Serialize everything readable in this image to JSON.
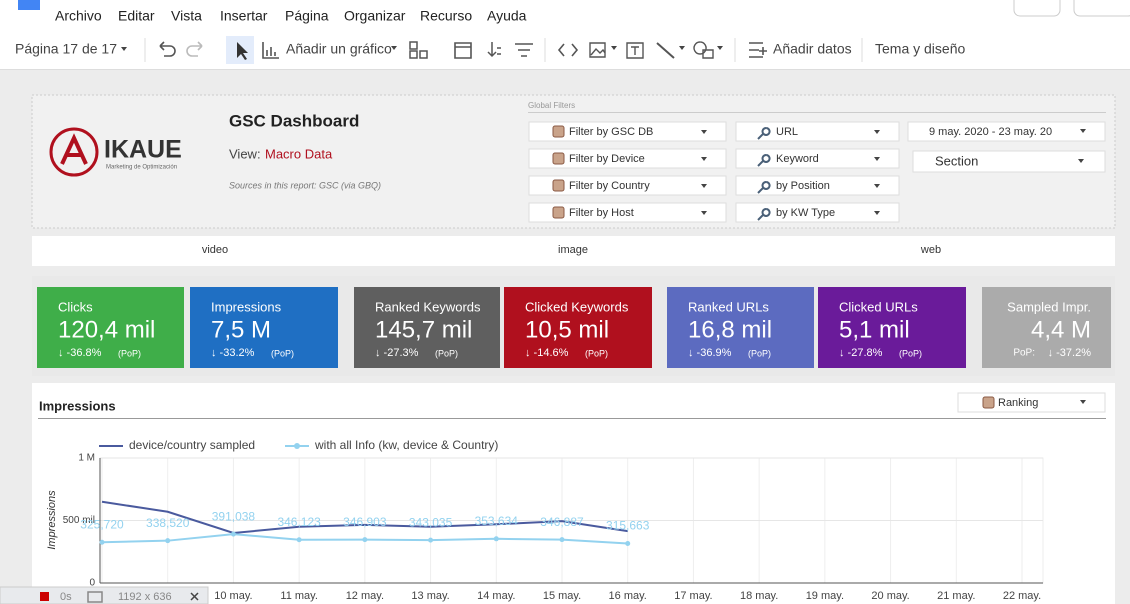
{
  "menu": [
    "Archivo",
    "Editar",
    "Vista",
    "Insertar",
    "Página",
    "Organizar",
    "Recurso",
    "Ayuda"
  ],
  "toolbar": {
    "page": "Página 17 de 17",
    "add_chart": "Añadir un gráfico",
    "add_data": "Añadir datos",
    "theme": "Tema y diseño"
  },
  "header": {
    "logo": "IKAUE",
    "logo_tagline": "Marketing de Optimización",
    "title": "GSC Dashboard",
    "view_label": "View:",
    "view": "Macro Data",
    "sources": "Sources in this report: GSC (via GBQ)"
  },
  "filters": {
    "label": "Global Filters",
    "columns": [
      [
        "Filter by GSC DB",
        "Filter by Device",
        "Filter by Country",
        "Filter by Host"
      ],
      [
        "URL",
        "Keyword",
        "by Position",
        "by KW Type"
      ]
    ],
    "date": "9 may. 2020 - 23 may. 20",
    "section": "Section"
  },
  "tabs": [
    "video",
    "image",
    "web"
  ],
  "kpis": [
    {
      "label": "Clicks",
      "value": "120,4 mil",
      "change": "↓ -36.8%",
      "pop": "(PoP)",
      "color": "#3fae49"
    },
    {
      "label": "Impressions",
      "value": "7,5 M",
      "change": "↓ -33.2%",
      "pop": "(PoP)",
      "color": "#1f6fc3"
    },
    {
      "label": "Ranked Keywords",
      "value": "145,7 mil",
      "change": "↓ -27.3%",
      "pop": "(PoP)",
      "color": "#5f5f5f"
    },
    {
      "label": "Clicked Keywords",
      "value": "10,5 mil",
      "change": "↓ -14.6%",
      "pop": "(PoP)",
      "color": "#b0101e"
    },
    {
      "label": "Ranked URLs",
      "value": "16,8 mil",
      "change": "↓ -36.9%",
      "pop": "(PoP)",
      "color": "#5c6bc0"
    },
    {
      "label": "Clicked URLs",
      "value": "5,1 mil",
      "change": "↓ -27.8%",
      "pop": "(PoP)",
      "color": "#6a1b9a"
    },
    {
      "label": "Sampled Impr.",
      "value": "4,4 M",
      "change": "↓ -37.2%",
      "pop": "PoP:",
      "color": "#ababab",
      "pop_position": "before"
    }
  ],
  "chart_data": {
    "type": "line",
    "title": "Impressions",
    "dropdown": "Ranking",
    "y_label": "Impressions",
    "categories": [
      null,
      null,
      "10 may.",
      "11 may.",
      "12 may.",
      "13 may.",
      "14 may.",
      "15 may.",
      "16 may.",
      "17 may.",
      "18 may.",
      "19 may.",
      "20 may.",
      "21 may.",
      "22 may."
    ],
    "series": [
      {
        "name": "device/country sampled",
        "color": "#4a5a9e",
        "values": [
          650000,
          570000,
          400000,
          450000,
          465000,
          450000,
          470000,
          495000,
          415000,
          null,
          null,
          null,
          null,
          null,
          null
        ]
      },
      {
        "name": "with all Info (kw, device & Country)",
        "color": "#93d2ef",
        "values": [
          325720,
          338520,
          391038,
          346123,
          346903,
          343035,
          353634,
          346887,
          315663,
          null,
          null,
          null,
          null,
          null,
          null
        ],
        "value_labels": [
          "325,720",
          "338,520",
          "391,038",
          "346,123",
          "346,903",
          "343,035",
          "353,634",
          "346,887",
          "315,663",
          null,
          null,
          null,
          null,
          null,
          null
        ]
      }
    ],
    "ylim": [
      0,
      1000000
    ],
    "yticks": [
      0,
      {
        "value": 500000,
        "label": "500 mil"
      },
      {
        "value": 1000000,
        "label": "1 M"
      }
    ],
    "grid": true
  },
  "status_bar": {
    "time": "0s",
    "size": "1192 x 636"
  }
}
